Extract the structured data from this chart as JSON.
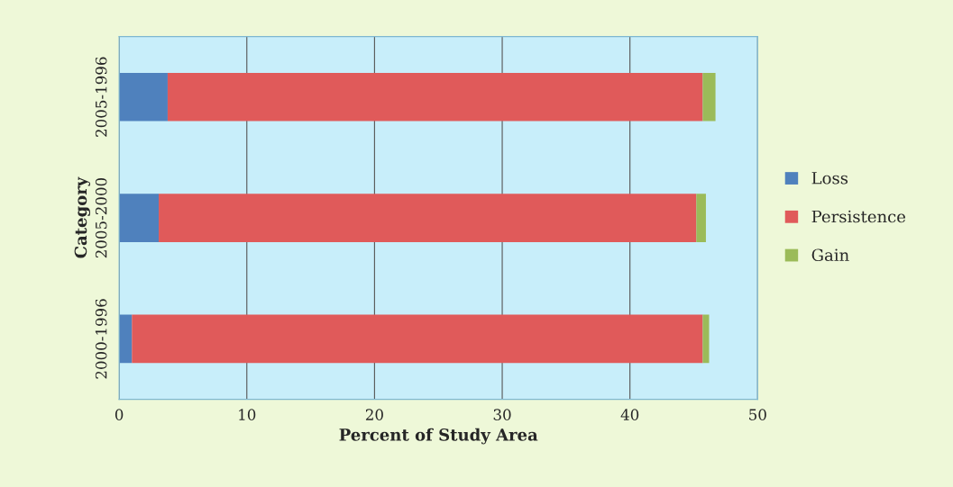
{
  "chart_data": {
    "type": "bar",
    "orientation": "horizontal",
    "stacked": true,
    "xlabel": "Percent of Study Area",
    "ylabel": "Category",
    "categories": [
      "2005-1996",
      "2005-2000",
      "2000-1996"
    ],
    "series": [
      {
        "name": "Loss",
        "color": "#4f81bd",
        "values": [
          3.8,
          3.1,
          1.0
        ]
      },
      {
        "name": "Persistence",
        "color": "#e05a5a",
        "values": [
          41.9,
          42.1,
          44.7
        ]
      },
      {
        "name": "Gain",
        "color": "#9bbb59",
        "values": [
          1.0,
          0.75,
          0.5
        ]
      }
    ],
    "xlim": [
      0,
      50
    ],
    "xticks": [
      0,
      10,
      20,
      30,
      40,
      50
    ],
    "grid": "x",
    "legend": "right"
  }
}
